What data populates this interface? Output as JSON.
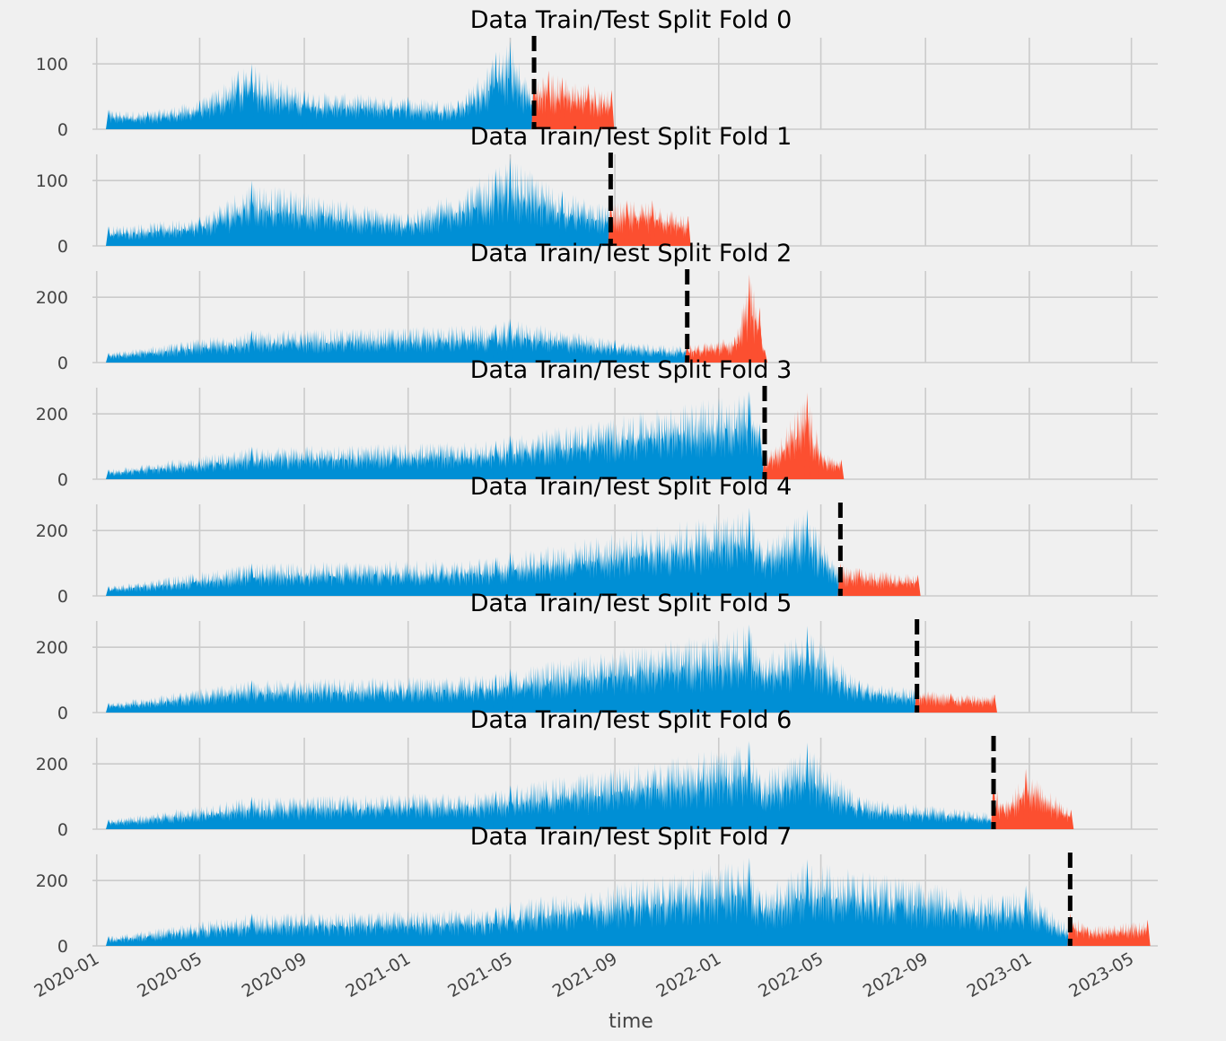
{
  "figure": {
    "xlabel": "time",
    "colors": {
      "train": "#008fd5",
      "test": "#fc4f30",
      "split_line": "#000000",
      "grid": "#cbcbcb",
      "background": "#f0f0f0"
    },
    "grid": true,
    "x_tick_labels": [
      "2020-01",
      "2020-05",
      "2020-09",
      "2021-01",
      "2021-05",
      "2021-09",
      "2022-01",
      "2022-05",
      "2022-09",
      "2023-01",
      "2023-05"
    ]
  },
  "chart_data": [
    {
      "type": "line",
      "title": "Data Train/Test Split Fold 0",
      "ylim": [
        0,
        140
      ],
      "yticks": [
        0,
        100
      ],
      "train_range": [
        "2020-01-15",
        "2021-05-29"
      ],
      "test_range": [
        "2021-05-29",
        "2021-08-28"
      ],
      "split_date": "2021-05-29",
      "series": [
        {
          "role": "train",
          "x": [
            "2020-01-15",
            "2020-03-01",
            "2020-05-01",
            "2020-06-15",
            "2020-07-01",
            "2020-09-01",
            "2021-01-01",
            "2021-03-01",
            "2021-04-14",
            "2021-05-01",
            "2021-05-29"
          ],
          "y": [
            30,
            28,
            45,
            90,
            100,
            60,
            50,
            45,
            118,
            135,
            55
          ]
        },
        {
          "role": "test",
          "x": [
            "2021-05-29",
            "2021-06-15",
            "2021-07-01",
            "2021-08-01",
            "2021-08-28"
          ],
          "y": [
            80,
            90,
            80,
            70,
            60
          ]
        }
      ]
    },
    {
      "type": "line",
      "title": "Data Train/Test Split Fold 1",
      "ylim": [
        0,
        140
      ],
      "yticks": [
        0,
        100
      ],
      "train_range": [
        "2020-01-15",
        "2021-08-27"
      ],
      "test_range": [
        "2021-08-27",
        "2021-11-26"
      ],
      "split_date": "2021-08-27",
      "series": [
        {
          "role": "train",
          "x": [
            "2020-01-15",
            "2020-05-01",
            "2020-07-01",
            "2021-01-01",
            "2021-04-14",
            "2021-05-01",
            "2021-07-01",
            "2021-08-27"
          ],
          "y": [
            30,
            45,
            100,
            50,
            118,
            135,
            85,
            60
          ]
        },
        {
          "role": "test",
          "x": [
            "2021-08-27",
            "2021-09-15",
            "2021-10-15",
            "2021-11-26"
          ],
          "y": [
            65,
            70,
            70,
            45
          ]
        }
      ]
    },
    {
      "type": "line",
      "title": "Data Train/Test Split Fold 2",
      "ylim": [
        0,
        280
      ],
      "yticks": [
        0,
        200
      ],
      "train_range": [
        "2020-01-15",
        "2021-11-25"
      ],
      "test_range": [
        "2021-11-25",
        "2022-02-24"
      ],
      "split_date": "2021-11-25",
      "series": [
        {
          "role": "train",
          "x": [
            "2020-01-15",
            "2020-07-01",
            "2021-04-14",
            "2021-05-01",
            "2021-09-01",
            "2021-11-25"
          ],
          "y": [
            30,
            100,
            118,
            135,
            70,
            50
          ]
        },
        {
          "role": "test",
          "x": [
            "2021-11-25",
            "2022-01-20",
            "2022-02-06",
            "2022-02-18",
            "2022-02-24"
          ],
          "y": [
            55,
            80,
            270,
            170,
            40
          ]
        }
      ]
    },
    {
      "type": "line",
      "title": "Data Train/Test Split Fold 3",
      "ylim": [
        0,
        280
      ],
      "yticks": [
        0,
        200
      ],
      "train_range": [
        "2020-01-15",
        "2022-02-24"
      ],
      "test_range": [
        "2022-02-24",
        "2022-05-25"
      ],
      "split_date": "2022-02-24",
      "series": [
        {
          "role": "train",
          "x": [
            "2020-01-15",
            "2020-07-01",
            "2021-04-14",
            "2021-05-01",
            "2022-02-06",
            "2022-02-18",
            "2022-02-24"
          ],
          "y": [
            30,
            100,
            118,
            135,
            270,
            170,
            50
          ]
        },
        {
          "role": "test",
          "x": [
            "2022-02-24",
            "2022-04-15",
            "2022-05-01",
            "2022-05-25"
          ],
          "y": [
            70,
            265,
            90,
            60
          ]
        }
      ]
    },
    {
      "type": "line",
      "title": "Data Train/Test Split Fold 4",
      "ylim": [
        0,
        280
      ],
      "yticks": [
        0,
        200
      ],
      "train_range": [
        "2020-01-15",
        "2022-05-24"
      ],
      "test_range": [
        "2022-05-24",
        "2022-08-23"
      ],
      "split_date": "2022-05-24",
      "series": [
        {
          "role": "train",
          "x": [
            "2020-01-15",
            "2020-07-01",
            "2021-04-14",
            "2021-05-01",
            "2022-02-06",
            "2022-02-18",
            "2022-04-15",
            "2022-05-24"
          ],
          "y": [
            30,
            100,
            118,
            135,
            270,
            170,
            265,
            80
          ]
        },
        {
          "role": "test",
          "x": [
            "2022-05-24",
            "2022-06-15",
            "2022-08-23"
          ],
          "y": [
            100,
            85,
            65
          ]
        }
      ]
    },
    {
      "type": "line",
      "title": "Data Train/Test Split Fold 5",
      "ylim": [
        0,
        280
      ],
      "yticks": [
        0,
        200
      ],
      "train_range": [
        "2020-01-15",
        "2022-08-22"
      ],
      "test_range": [
        "2022-08-22",
        "2022-11-21"
      ],
      "split_date": "2022-08-22",
      "series": [
        {
          "role": "train",
          "x": [
            "2020-01-15",
            "2020-07-01",
            "2021-04-14",
            "2021-05-01",
            "2022-02-06",
            "2022-02-18",
            "2022-04-15",
            "2022-06-15",
            "2022-08-22"
          ],
          "y": [
            30,
            100,
            118,
            135,
            270,
            170,
            265,
            100,
            75
          ]
        },
        {
          "role": "test",
          "x": [
            "2022-08-22",
            "2022-10-01",
            "2022-11-21"
          ],
          "y": [
            75,
            60,
            55
          ]
        }
      ]
    },
    {
      "type": "line",
      "title": "Data Train/Test Split Fold 6",
      "ylim": [
        0,
        280
      ],
      "yticks": [
        0,
        200
      ],
      "train_range": [
        "2020-01-15",
        "2022-11-20"
      ],
      "test_range": [
        "2022-11-20",
        "2023-02-19"
      ],
      "split_date": "2022-11-20",
      "series": [
        {
          "role": "train",
          "x": [
            "2020-01-15",
            "2020-07-01",
            "2021-04-14",
            "2021-05-01",
            "2022-02-06",
            "2022-02-18",
            "2022-04-15",
            "2022-06-15",
            "2022-11-20"
          ],
          "y": [
            30,
            100,
            118,
            135,
            270,
            170,
            265,
            100,
            50
          ]
        },
        {
          "role": "test",
          "x": [
            "2022-11-20",
            "2022-12-01",
            "2022-12-28",
            "2023-02-19"
          ],
          "y": [
            155,
            80,
            185,
            60
          ]
        }
      ]
    },
    {
      "type": "line",
      "title": "Data Train/Test Split Fold 7",
      "ylim": [
        0,
        280
      ],
      "yticks": [
        0,
        200
      ],
      "train_range": [
        "2020-01-15",
        "2023-02-18"
      ],
      "test_range": [
        "2023-02-18",
        "2023-05-20"
      ],
      "split_date": "2023-02-18",
      "series": [
        {
          "role": "train",
          "x": [
            "2020-01-15",
            "2020-07-01",
            "2021-04-14",
            "2021-05-01",
            "2022-02-06",
            "2022-02-18",
            "2022-04-15",
            "2022-12-01",
            "2022-12-28",
            "2023-02-18"
          ],
          "y": [
            30,
            100,
            118,
            135,
            270,
            170,
            265,
            155,
            185,
            55
          ]
        },
        {
          "role": "test",
          "x": [
            "2023-02-18",
            "2023-03-10",
            "2023-05-20"
          ],
          "y": [
            100,
            60,
            80
          ]
        }
      ]
    }
  ]
}
